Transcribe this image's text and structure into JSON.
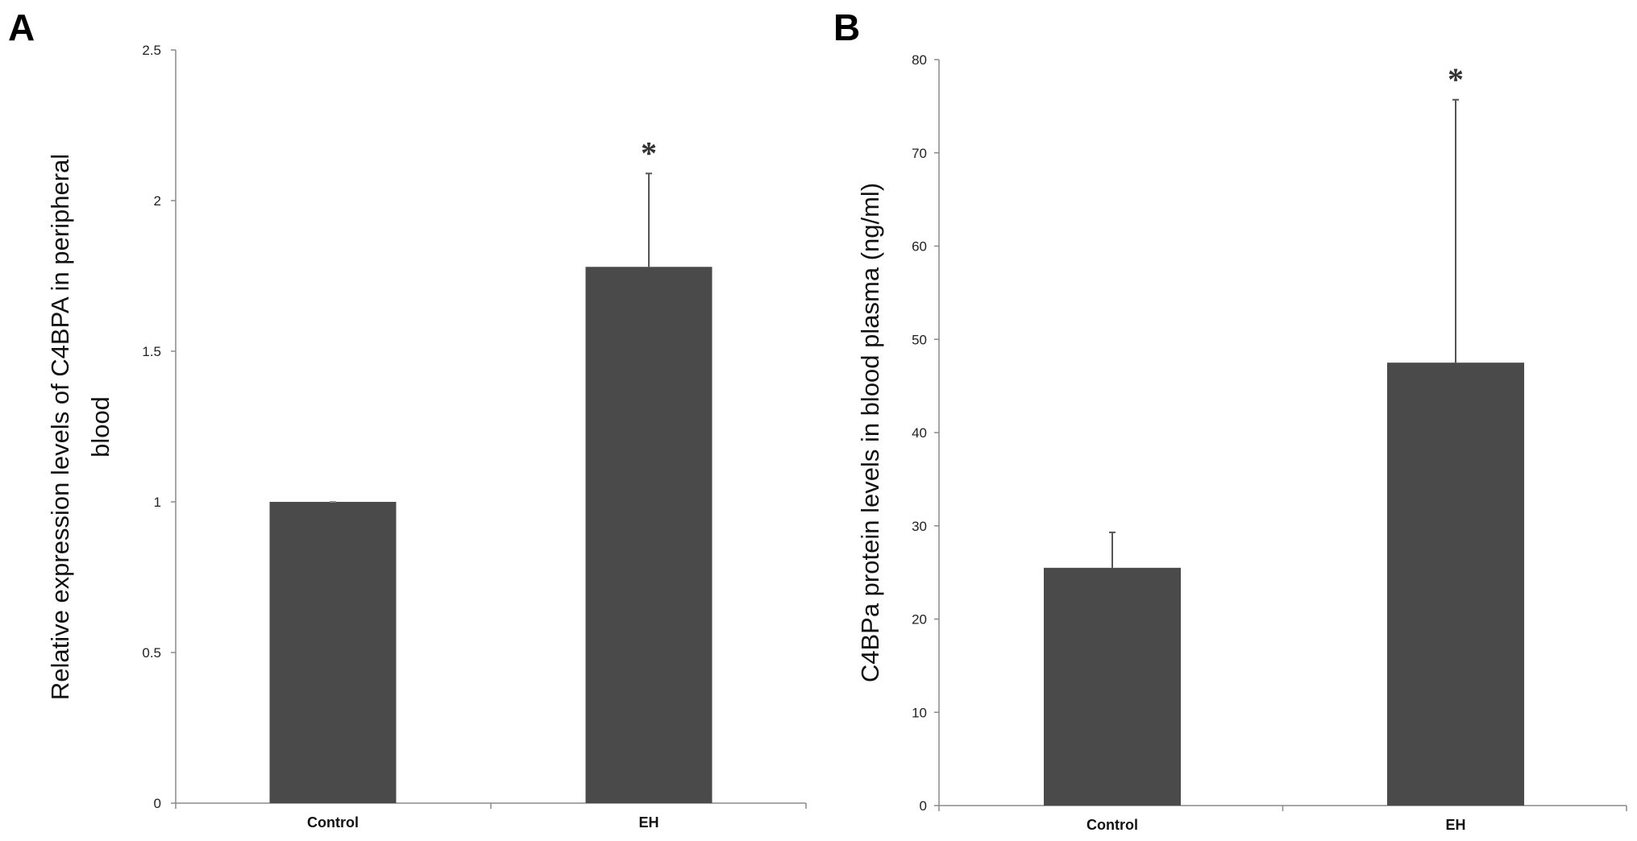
{
  "chart_data": [
    {
      "type": "bar",
      "panel_label": "A",
      "categories": [
        "Control",
        "EH"
      ],
      "values": [
        1.0,
        1.78
      ],
      "errors": [
        0.0,
        0.31
      ],
      "significance": [
        "",
        "*"
      ],
      "title": "",
      "xlabel": "",
      "ylabel": "Relative expression levels of C4BPA in peripheral blood",
      "ylabel_lines": [
        "Relative expression levels  of C4BPA in peripheral",
        "blood"
      ],
      "ylim": [
        0,
        2.5
      ],
      "yticks": [
        0,
        0.5,
        1,
        1.5,
        2,
        2.5
      ],
      "ytick_labels": [
        "0",
        "0.5",
        "1",
        "1.5",
        "2",
        "2.5"
      ],
      "grid": false,
      "bar_color": "#4a4a4a"
    },
    {
      "type": "bar",
      "panel_label": "B",
      "categories": [
        "Control",
        "EH"
      ],
      "values": [
        25.5,
        47.5
      ],
      "errors": [
        3.8,
        28.2
      ],
      "significance": [
        "",
        "*"
      ],
      "title": "",
      "xlabel": "",
      "ylabel": "C4BPa protein levels in blood plasma (ng/ml)",
      "ylabel_lines": [
        "C4BPa protein levels in blood plasma (ng/ml)"
      ],
      "ylim": [
        0,
        80
      ],
      "yticks": [
        0,
        10,
        20,
        30,
        40,
        50,
        60,
        70,
        80
      ],
      "ytick_labels": [
        "0",
        "10",
        "20",
        "30",
        "40",
        "50",
        "60",
        "70",
        "80"
      ],
      "grid": false,
      "bar_color": "#4a4a4a"
    }
  ]
}
